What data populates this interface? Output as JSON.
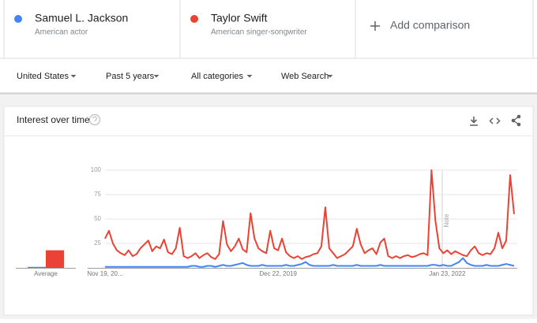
{
  "add_comparison": "Add comparison",
  "filters": [
    "United States",
    "Past 5 years",
    "All categories",
    "Web Search"
  ],
  "chart_data": {
    "type": "line",
    "title": "Interest over time",
    "categories": [
      "Nov 19, 20...",
      null,
      null,
      null,
      null,
      null,
      null,
      null,
      null,
      null,
      null,
      null,
      null,
      null,
      null,
      null,
      null,
      null,
      null,
      null,
      null,
      null,
      null,
      null,
      null,
      null,
      null,
      null,
      null,
      null,
      null,
      null,
      null,
      null,
      null,
      null,
      null,
      null,
      null,
      null,
      null,
      null,
      null,
      null,
      "Dec 22, 2019",
      null,
      null,
      null,
      null,
      null,
      null,
      null,
      null,
      null,
      null,
      null,
      null,
      null,
      null,
      null,
      null,
      null,
      null,
      null,
      null,
      null,
      null,
      null,
      null,
      null,
      null,
      null,
      null,
      null,
      null,
      null,
      null,
      null,
      null,
      null,
      null,
      null,
      null,
      null,
      null,
      null,
      null,
      "Jan 23, 2022",
      null,
      null,
      null,
      null,
      null,
      null,
      null,
      null,
      null,
      null,
      null,
      null,
      null,
      null,
      null,
      null,
      null
    ],
    "series": [
      {
        "name": "Samuel L. Jackson",
        "description": "American actor",
        "color": "#4285f4",
        "average": 1,
        "values": [
          1,
          1,
          1,
          1,
          1,
          1,
          1,
          1,
          1,
          1,
          1,
          1,
          1,
          1,
          1,
          1,
          1,
          1,
          1,
          1,
          1,
          1,
          2,
          2,
          1,
          1,
          2,
          2,
          1,
          2,
          3,
          2,
          2,
          3,
          4,
          5,
          3,
          2,
          2,
          2,
          3,
          2,
          2,
          2,
          2,
          2,
          3,
          2,
          2,
          3,
          4,
          6,
          3,
          2,
          2,
          2,
          2,
          2,
          3,
          2,
          2,
          2,
          2,
          2,
          3,
          2,
          2,
          2,
          2,
          2,
          3,
          2,
          2,
          2,
          2,
          2,
          2,
          2,
          2,
          2,
          2,
          2,
          2,
          3,
          3,
          2,
          3,
          2,
          2,
          4,
          6,
          10,
          5,
          3,
          2,
          2,
          2,
          3,
          2,
          2,
          2,
          3,
          4,
          3,
          2
        ]
      },
      {
        "name": "Taylor Swift",
        "description": "American singer-songwriter",
        "color": "#ea4335",
        "average": 18,
        "values": [
          30,
          38,
          25,
          18,
          15,
          13,
          18,
          12,
          14,
          20,
          24,
          28,
          17,
          22,
          20,
          29,
          16,
          14,
          20,
          41,
          12,
          10,
          12,
          15,
          10,
          13,
          15,
          11,
          9,
          14,
          48,
          24,
          17,
          22,
          30,
          19,
          16,
          56,
          30,
          20,
          17,
          15,
          38,
          20,
          18,
          30,
          16,
          12,
          10,
          12,
          9,
          11,
          12,
          14,
          15,
          22,
          62,
          20,
          15,
          10,
          12,
          14,
          18,
          22,
          40,
          24,
          15,
          18,
          20,
          14,
          26,
          30,
          12,
          10,
          12,
          10,
          12,
          13,
          11,
          12,
          14,
          15,
          13,
          100,
          48,
          20,
          15,
          18,
          14,
          17,
          15,
          13,
          12,
          18,
          22,
          15,
          13,
          15,
          14,
          20,
          36,
          20,
          28,
          95,
          55
        ]
      }
    ],
    "average_label": "Average",
    "annotation": "Note",
    "ylim": [
      0,
      100
    ],
    "yticks": [
      25,
      50,
      75,
      100
    ],
    "grid": true
  }
}
